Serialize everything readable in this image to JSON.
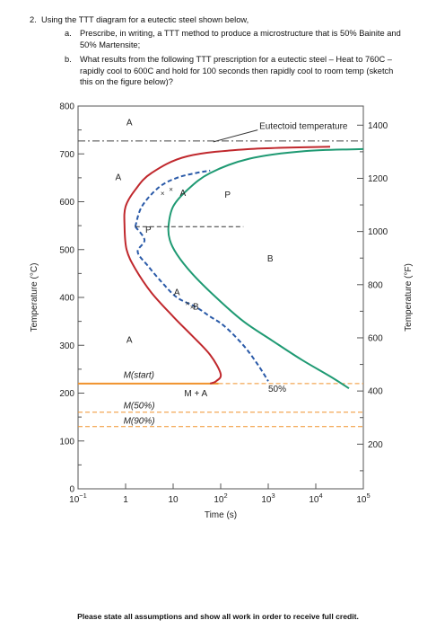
{
  "question": {
    "number": "2.",
    "intro": "Using the TTT diagram for a eutectic steel shown below,",
    "parts": [
      {
        "label": "a.",
        "lines": [
          "Prescribe, in writing, a TTT method to produce a microstructure that is 50% Bainite and",
          "50% Martensite;"
        ]
      },
      {
        "label": "b.",
        "lines": [
          "What results from the following TTT prescription for a eutectic steel – Heat to 760C –",
          "rapidly cool to 600C and hold for 100 seconds then rapidly cool to room temp (sketch",
          "this on the figure below)?"
        ]
      }
    ]
  },
  "footer": "Please state all assumptions and show all work in order to receive full credit.",
  "chart_data": {
    "type": "line",
    "xlabel": "Time (s)",
    "ylabel_left": "Temperature (°C)",
    "ylabel_right": "Temperature (°F)",
    "x_scale": "log",
    "xlim": [
      0.1,
      100000
    ],
    "ylim": [
      0,
      800
    ],
    "x_ticks": [
      {
        "value": 0.1,
        "base": "10",
        "exp": "−1"
      },
      {
        "value": 1,
        "base": "1",
        "exp": ""
      },
      {
        "value": 10,
        "base": "10",
        "exp": ""
      },
      {
        "value": 100,
        "base": "10",
        "exp": "2"
      },
      {
        "value": 1000,
        "base": "10",
        "exp": "3"
      },
      {
        "value": 10000,
        "base": "10",
        "exp": "4"
      },
      {
        "value": 100000,
        "base": "10",
        "exp": "5"
      }
    ],
    "y_ticks_c": [
      "0",
      "100",
      "200",
      "300",
      "400",
      "500",
      "600",
      "700",
      "800"
    ],
    "y_ticks_f": [
      "200",
      "400",
      "600",
      "800",
      "1000",
      "1200",
      "1400"
    ],
    "eutectoid_temperature_c": 727,
    "ms_start_c": 220,
    "m50_c": 160,
    "m90_c": 130,
    "series": [
      {
        "name": "start",
        "color": "#c0282d",
        "x": [
          20000,
          400,
          20,
          3.5,
          1.6,
          1,
          0.95,
          1.05,
          1.6,
          3.5,
          10,
          25,
          60,
          100,
          80,
          60
        ],
        "y": [
          715,
          710,
          695,
          660,
          625,
          590,
          550,
          500,
          460,
          410,
          360,
          320,
          280,
          240,
          225,
          220
        ]
      },
      {
        "name": "finish",
        "color": "#1f9a73",
        "x": [
          100000,
          6000,
          400,
          60,
          20,
          10,
          8,
          8.5,
          12,
          25,
          80,
          300,
          1200,
          5000,
          20000,
          50000
        ],
        "y": [
          710,
          706,
          690,
          660,
          625,
          590,
          550,
          520,
          490,
          450,
          400,
          350,
          310,
          270,
          235,
          210
        ]
      },
      {
        "name": "path",
        "color": "#2a5aa8",
        "x": [
          1.6,
          2.2,
          5,
          12,
          30,
          60,
          2.5,
          1.8,
          3,
          6,
          12,
          30,
          60,
          120,
          300,
          600,
          1000
        ],
        "y": [
          548,
          590,
          630,
          650,
          660,
          665,
          520,
          495,
          465,
          430,
          400,
          380,
          360,
          340,
          300,
          260,
          225
        ]
      }
    ],
    "region_labels": [
      {
        "text": "A",
        "x": 1.2,
        "y": 760
      },
      {
        "text": "A",
        "x": 0.7,
        "y": 645
      },
      {
        "text": "A",
        "x": 1.2,
        "y": 305
      },
      {
        "text": "P",
        "x": 140,
        "y": 608
      },
      {
        "text": "B",
        "x": 1100,
        "y": 475
      },
      {
        "text": "A",
        "x": 12,
        "y": 405
      },
      {
        "text": "B",
        "x": 30,
        "y": 375
      },
      {
        "text": "A",
        "x": 16,
        "y": 612
      },
      {
        "text": "P",
        "x": 3,
        "y": 535
      },
      {
        "text": "M + A",
        "x": 30,
        "y": 193
      }
    ],
    "annotations": {
      "eutectoid": "Eutectoid temperature",
      "m_start": "M(start)",
      "m50": "M(50%)",
      "m90": "M(90%)",
      "pct50": "50%"
    }
  }
}
